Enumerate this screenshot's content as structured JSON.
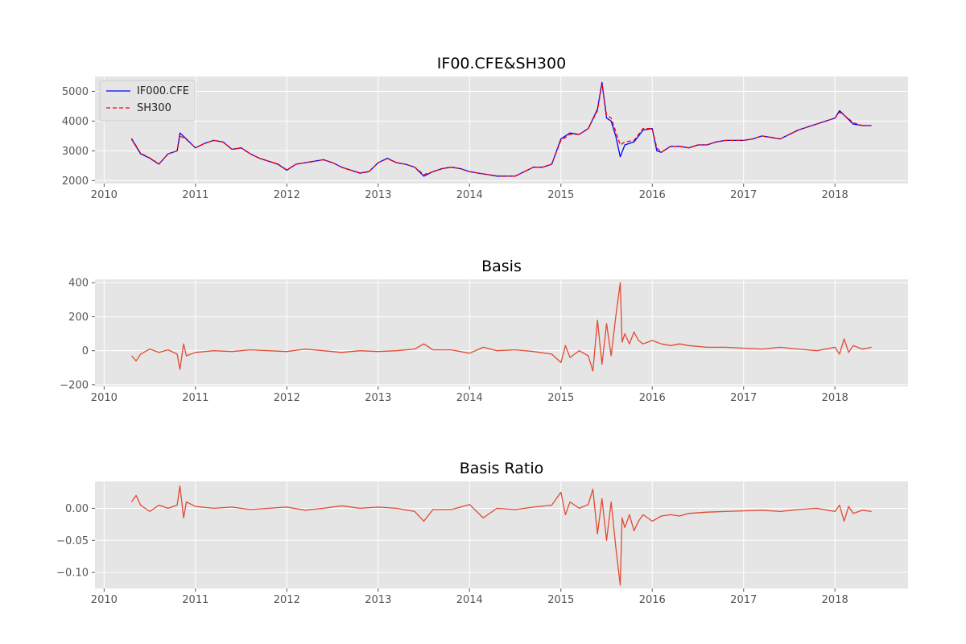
{
  "chart_data": [
    {
      "type": "line",
      "title": "IF00.CFE&SH300",
      "xlabel": "",
      "ylabel": "",
      "xlim": [
        2009.9,
        2018.8
      ],
      "ylim": [
        1900,
        5500
      ],
      "x_ticks": [
        "2010",
        "2011",
        "2012",
        "2013",
        "2014",
        "2015",
        "2016",
        "2017",
        "2018"
      ],
      "y_ticks": [
        "2000",
        "3000",
        "4000",
        "5000"
      ],
      "grid": true,
      "legend": "top-left",
      "series": [
        {
          "name": "IF000.CFE",
          "color": "#0000ff",
          "style": "solid",
          "x": [
            2010.3,
            2010.4,
            2010.5,
            2010.6,
            2010.7,
            2010.8,
            2010.83,
            2010.9,
            2011.0,
            2011.1,
            2011.2,
            2011.3,
            2011.4,
            2011.5,
            2011.6,
            2011.7,
            2011.8,
            2011.9,
            2012.0,
            2012.1,
            2012.2,
            2012.3,
            2012.4,
            2012.5,
            2012.6,
            2012.7,
            2012.8,
            2012.9,
            2013.0,
            2013.1,
            2013.2,
            2013.3,
            2013.4,
            2013.5,
            2013.6,
            2013.7,
            2013.8,
            2013.9,
            2014.0,
            2014.1,
            2014.2,
            2014.3,
            2014.4,
            2014.5,
            2014.6,
            2014.7,
            2014.8,
            2014.9,
            2015.0,
            2015.1,
            2015.2,
            2015.3,
            2015.4,
            2015.45,
            2015.5,
            2015.55,
            2015.6,
            2015.65,
            2015.7,
            2015.8,
            2015.9,
            2016.0,
            2016.05,
            2016.1,
            2016.2,
            2016.3,
            2016.4,
            2016.5,
            2016.6,
            2016.7,
            2016.8,
            2016.9,
            2017.0,
            2017.1,
            2017.2,
            2017.3,
            2017.4,
            2017.5,
            2017.6,
            2017.7,
            2017.8,
            2017.9,
            2018.0,
            2018.05,
            2018.1,
            2018.2,
            2018.3,
            2018.4
          ],
          "values": [
            3400,
            2900,
            2750,
            2550,
            2900,
            3000,
            3600,
            3400,
            3100,
            3250,
            3350,
            3300,
            3050,
            3100,
            2900,
            2750,
            2650,
            2550,
            2350,
            2550,
            2600,
            2650,
            2700,
            2600,
            2450,
            2350,
            2250,
            2300,
            2600,
            2750,
            2600,
            2550,
            2450,
            2150,
            2300,
            2400,
            2450,
            2400,
            2300,
            2250,
            2200,
            2150,
            2150,
            2150,
            2300,
            2450,
            2450,
            2550,
            3400,
            3600,
            3550,
            3750,
            4400,
            5300,
            4100,
            4000,
            3500,
            2800,
            3200,
            3300,
            3700,
            3750,
            3000,
            2950,
            3150,
            3150,
            3100,
            3200,
            3200,
            3300,
            3350,
            3350,
            3350,
            3400,
            3500,
            3450,
            3400,
            3550,
            3700,
            3800,
            3900,
            4000,
            4100,
            4350,
            4200,
            3900,
            3850,
            3850
          ]
        },
        {
          "name": "SH300",
          "color": "#ff0000",
          "style": "dashed",
          "x": [
            2010.3,
            2010.4,
            2010.5,
            2010.6,
            2010.7,
            2010.8,
            2010.83,
            2010.9,
            2011.0,
            2011.1,
            2011.2,
            2011.3,
            2011.4,
            2011.5,
            2011.6,
            2011.7,
            2011.8,
            2011.9,
            2012.0,
            2012.1,
            2012.2,
            2012.3,
            2012.4,
            2012.5,
            2012.6,
            2012.7,
            2012.8,
            2012.9,
            2013.0,
            2013.1,
            2013.2,
            2013.3,
            2013.4,
            2013.5,
            2013.6,
            2013.7,
            2013.8,
            2013.9,
            2014.0,
            2014.1,
            2014.2,
            2014.3,
            2014.4,
            2014.5,
            2014.6,
            2014.7,
            2014.8,
            2014.9,
            2015.0,
            2015.1,
            2015.2,
            2015.3,
            2015.4,
            2015.45,
            2015.5,
            2015.55,
            2015.6,
            2015.65,
            2015.7,
            2015.8,
            2015.9,
            2016.0,
            2016.05,
            2016.1,
            2016.2,
            2016.3,
            2016.4,
            2016.5,
            2016.6,
            2016.7,
            2016.8,
            2016.9,
            2017.0,
            2017.1,
            2017.2,
            2017.3,
            2017.4,
            2017.5,
            2017.6,
            2017.7,
            2017.8,
            2017.9,
            2018.0,
            2018.05,
            2018.1,
            2018.2,
            2018.3,
            2018.4
          ],
          "values": [
            3420,
            2920,
            2760,
            2560,
            2900,
            3000,
            3500,
            3380,
            3100,
            3250,
            3350,
            3300,
            3050,
            3100,
            2900,
            2750,
            2650,
            2560,
            2360,
            2550,
            2600,
            2650,
            2700,
            2600,
            2450,
            2350,
            2260,
            2300,
            2600,
            2740,
            2600,
            2550,
            2450,
            2200,
            2300,
            2400,
            2450,
            2400,
            2300,
            2250,
            2200,
            2160,
            2150,
            2150,
            2300,
            2450,
            2450,
            2550,
            3350,
            3550,
            3550,
            3750,
            4350,
            5250,
            4200,
            4100,
            3650,
            3200,
            3300,
            3350,
            3750,
            3750,
            3100,
            2950,
            3150,
            3150,
            3100,
            3200,
            3200,
            3300,
            3350,
            3350,
            3350,
            3400,
            3500,
            3450,
            3400,
            3550,
            3700,
            3800,
            3900,
            4000,
            4100,
            4300,
            4200,
            3950,
            3850,
            3850
          ]
        }
      ]
    },
    {
      "type": "line",
      "title": "Basis",
      "xlabel": "",
      "ylabel": "",
      "xlim": [
        2009.9,
        2018.8
      ],
      "ylim": [
        -210,
        420
      ],
      "x_ticks": [
        "2010",
        "2011",
        "2012",
        "2013",
        "2014",
        "2015",
        "2016",
        "2017",
        "2018"
      ],
      "y_ticks": [
        "−200",
        "0",
        "200",
        "400"
      ],
      "grid": true,
      "series": [
        {
          "color": "#e24a33",
          "x": [
            2010.3,
            2010.35,
            2010.4,
            2010.5,
            2010.6,
            2010.7,
            2010.8,
            2010.83,
            2010.87,
            2010.9,
            2011.0,
            2011.2,
            2011.4,
            2011.6,
            2011.8,
            2012.0,
            2012.2,
            2012.4,
            2012.6,
            2012.8,
            2013.0,
            2013.2,
            2013.4,
            2013.5,
            2013.6,
            2013.8,
            2014.0,
            2014.15,
            2014.3,
            2014.5,
            2014.7,
            2014.9,
            2015.0,
            2015.05,
            2015.1,
            2015.2,
            2015.3,
            2015.35,
            2015.4,
            2015.45,
            2015.5,
            2015.55,
            2015.6,
            2015.65,
            2015.67,
            2015.7,
            2015.75,
            2015.8,
            2015.85,
            2015.9,
            2016.0,
            2016.1,
            2016.2,
            2016.3,
            2016.4,
            2016.6,
            2016.8,
            2017.0,
            2017.2,
            2017.4,
            2017.6,
            2017.8,
            2018.0,
            2018.05,
            2018.1,
            2018.15,
            2018.2,
            2018.3,
            2018.4
          ],
          "values": [
            -30,
            -60,
            -20,
            10,
            -10,
            5,
            -20,
            -110,
            40,
            -30,
            -10,
            0,
            -5,
            5,
            0,
            -5,
            10,
            0,
            -10,
            0,
            -5,
            0,
            10,
            40,
            5,
            5,
            -15,
            20,
            0,
            5,
            -5,
            -20,
            -70,
            30,
            -40,
            0,
            -30,
            -120,
            180,
            -80,
            160,
            -30,
            200,
            400,
            50,
            100,
            40,
            110,
            60,
            40,
            60,
            40,
            30,
            40,
            30,
            20,
            20,
            15,
            10,
            20,
            10,
            0,
            20,
            -20,
            70,
            -10,
            30,
            10,
            20
          ]
        }
      ]
    },
    {
      "type": "line",
      "title": "Basis Ratio",
      "xlabel": "",
      "ylabel": "",
      "xlim": [
        2009.9,
        2018.8
      ],
      "ylim": [
        -0.125,
        0.042
      ],
      "x_ticks": [
        "2010",
        "2011",
        "2012",
        "2013",
        "2014",
        "2015",
        "2016",
        "2017",
        "2018"
      ],
      "y_ticks": [
        "−0.10",
        "−0.05",
        "0.00"
      ],
      "grid": true,
      "series": [
        {
          "color": "#e24a33",
          "x": [
            2010.3,
            2010.35,
            2010.4,
            2010.5,
            2010.6,
            2010.7,
            2010.8,
            2010.83,
            2010.87,
            2010.9,
            2011.0,
            2011.2,
            2011.4,
            2011.6,
            2011.8,
            2012.0,
            2012.2,
            2012.4,
            2012.6,
            2012.8,
            2013.0,
            2013.2,
            2013.4,
            2013.5,
            2013.6,
            2013.8,
            2014.0,
            2014.15,
            2014.3,
            2014.5,
            2014.7,
            2014.9,
            2015.0,
            2015.05,
            2015.1,
            2015.2,
            2015.3,
            2015.35,
            2015.4,
            2015.45,
            2015.5,
            2015.55,
            2015.6,
            2015.65,
            2015.67,
            2015.7,
            2015.75,
            2015.8,
            2015.85,
            2015.9,
            2016.0,
            2016.1,
            2016.2,
            2016.3,
            2016.4,
            2016.6,
            2016.8,
            2017.0,
            2017.2,
            2017.4,
            2017.6,
            2017.8,
            2018.0,
            2018.05,
            2018.1,
            2018.15,
            2018.2,
            2018.3,
            2018.4
          ],
          "values": [
            0.01,
            0.02,
            0.005,
            -0.005,
            0.005,
            0.0,
            0.005,
            0.035,
            -0.015,
            0.01,
            0.003,
            0.0,
            0.002,
            -0.002,
            0.0,
            0.002,
            -0.003,
            0.0,
            0.004,
            0.0,
            0.002,
            0.0,
            -0.005,
            -0.02,
            -0.002,
            -0.002,
            0.006,
            -0.015,
            0.0,
            -0.002,
            0.002,
            0.005,
            0.025,
            -0.01,
            0.01,
            0.0,
            0.006,
            0.03,
            -0.04,
            0.015,
            -0.05,
            0.01,
            -0.06,
            -0.12,
            -0.015,
            -0.03,
            -0.01,
            -0.035,
            -0.02,
            -0.01,
            -0.02,
            -0.012,
            -0.01,
            -0.012,
            -0.008,
            -0.006,
            -0.005,
            -0.004,
            -0.003,
            -0.005,
            -0.002,
            0.0,
            -0.005,
            0.005,
            -0.02,
            0.003,
            -0.008,
            -0.003,
            -0.005
          ]
        }
      ]
    }
  ]
}
